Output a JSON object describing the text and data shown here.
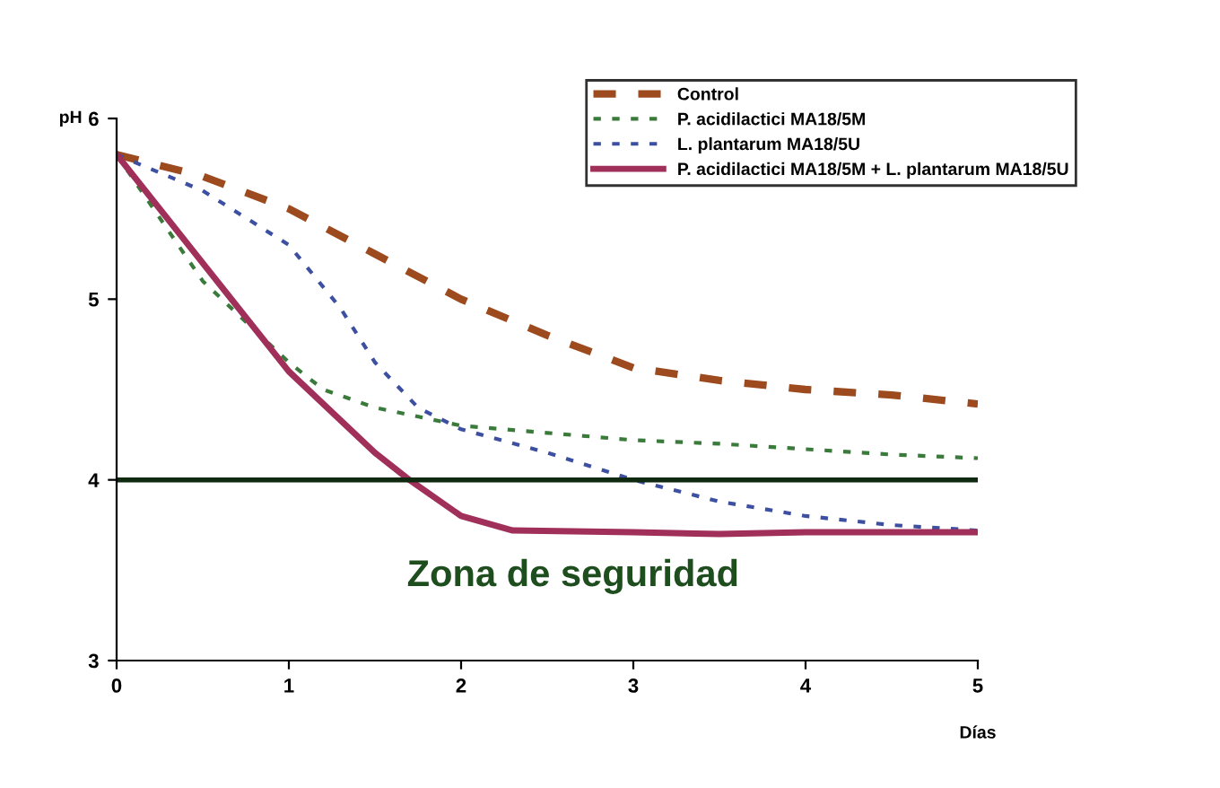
{
  "chart_data": {
    "type": "line",
    "xlabel": "Días",
    "ylabel": "pH",
    "xlim": [
      0,
      5
    ],
    "ylim": [
      3,
      6
    ],
    "xticks": [
      0,
      1,
      2,
      3,
      4,
      5
    ],
    "yticks": [
      3,
      4,
      5,
      6
    ],
    "grid": false,
    "legend": "top right",
    "marker": "none",
    "series": [
      {
        "name": "Control",
        "color": "#9c4a1e",
        "line_style": "dashed",
        "x": [
          0,
          0.5,
          1,
          1.5,
          2,
          2.5,
          3,
          3.5,
          4,
          4.5,
          5
        ],
        "values": [
          5.8,
          5.68,
          5.5,
          5.25,
          5.0,
          4.8,
          4.62,
          4.55,
          4.5,
          4.47,
          4.42
        ]
      },
      {
        "name": "P. acidilactici MA18/5M",
        "color": "#3a7a3a",
        "line_style": "dotted",
        "x": [
          0,
          0.5,
          1,
          1.2,
          1.5,
          2,
          2.5,
          3,
          3.5,
          4,
          4.5,
          5
        ],
        "values": [
          5.8,
          5.1,
          4.65,
          4.5,
          4.4,
          4.3,
          4.26,
          4.22,
          4.2,
          4.17,
          4.14,
          4.12
        ]
      },
      {
        "name": "L. plantarum MA18/5U",
        "color": "#3c4fa0",
        "line_style": "dotted",
        "x": [
          0,
          0.5,
          1,
          1.3,
          1.5,
          1.75,
          2,
          2.5,
          3,
          3.5,
          4,
          4.5,
          5
        ],
        "values": [
          5.8,
          5.6,
          5.3,
          4.95,
          4.65,
          4.4,
          4.28,
          4.15,
          4.0,
          3.88,
          3.8,
          3.75,
          3.72
        ]
      },
      {
        "name": "P. acidilactici MA18/5M + L. plantarum MA18/5U",
        "color": "#a0305a",
        "line_style": "solid",
        "x": [
          0,
          0.5,
          1,
          1.5,
          1.7,
          2,
          2.3,
          3,
          3.5,
          4,
          5
        ],
        "values": [
          5.8,
          5.2,
          4.6,
          4.15,
          4.0,
          3.8,
          3.72,
          3.71,
          3.7,
          3.71,
          3.71
        ]
      }
    ],
    "ref_lines": [
      {
        "axis": "y",
        "value": 4,
        "color": "#0f2a10",
        "line_style": "solid"
      }
    ],
    "annotations": [
      "Zona de seguridad"
    ]
  }
}
